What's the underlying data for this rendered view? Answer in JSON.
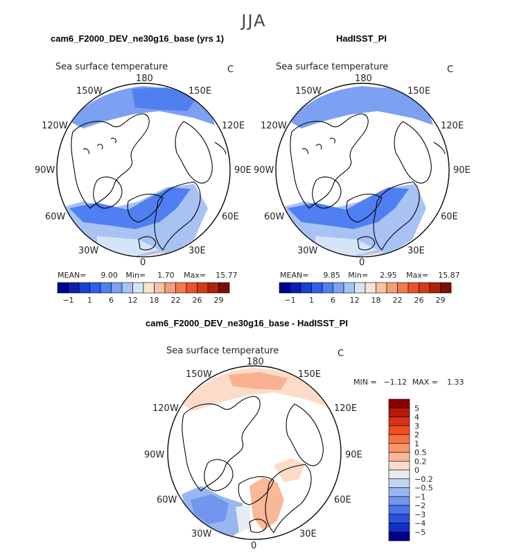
{
  "season": "JJA",
  "variable": "Sea surface temperature",
  "unit": "C",
  "lon_labels": [
    "180",
    "150E",
    "120E",
    "90E",
    "60E",
    "30E",
    "0",
    "30W",
    "60W",
    "90W",
    "120W",
    "150W"
  ],
  "panel1": {
    "title": "cam6_F2000_DEV_ne30g16_base (yrs 1)",
    "mean_label": "MEAN=",
    "mean": "9.00",
    "min_label": "Min=",
    "min": "1.70",
    "max_label": "Max=",
    "max": "15.77"
  },
  "panel2": {
    "title": "HadISST_PI",
    "mean_label": "MEAN=",
    "mean": "9.85",
    "min_label": "Min=",
    "min": "2.95",
    "max_label": "Max=",
    "max": "15.87"
  },
  "panel3": {
    "title": "cam6_F2000_DEV_ne30g16_base - HadISST_PI",
    "min_label": "MIN =",
    "min": "−1.12",
    "max_label": "MAX =",
    "max": "1.33"
  },
  "colorbar_main": {
    "tick_labels": [
      "−1",
      "1",
      "6",
      "12",
      "18",
      "22",
      "26",
      "29"
    ],
    "colors": [
      "#00008b",
      "#0a1fb4",
      "#1b3fd6",
      "#2f5fe8",
      "#4f7ff0",
      "#7ca0f2",
      "#a8c2f4",
      "#d6e4f8",
      "#fbe3d2",
      "#f8c2a6",
      "#f59e78",
      "#f27a4c",
      "#ec5426",
      "#d63a14",
      "#b0220c",
      "#7a0f04"
    ]
  },
  "colorbar_diff": {
    "labels": [
      "5",
      "4",
      "3",
      "2",
      "1",
      "0.5",
      "0.2",
      "0",
      "−0.2",
      "−0.5",
      "−1",
      "−2",
      "−3",
      "−4",
      "−5"
    ],
    "colors": [
      "#8b0000",
      "#b3190a",
      "#d93016",
      "#f24d20",
      "#f7723e",
      "#f9956a",
      "#fbb896",
      "#fcdcc8",
      "#e8ecf2",
      "#c2d4f4",
      "#9ab6f2",
      "#7296ee",
      "#4a74e8",
      "#2a52dc",
      "#1430c4",
      "#00008b"
    ]
  },
  "map_fields": {
    "panel1_regions": [
      {
        "lat": 65,
        "lon": -25,
        "value": 7
      },
      {
        "lat": 60,
        "lon": -50,
        "value": 8
      },
      {
        "lat": 70,
        "lon": -10,
        "value": 6
      },
      {
        "lat": 72,
        "lon": 20,
        "value": 5
      },
      {
        "lat": 56,
        "lon": -30,
        "value": 10
      },
      {
        "lat": 52,
        "lon": -20,
        "value": 12
      },
      {
        "lat": 60,
        "lon": -175,
        "value": 6
      },
      {
        "lat": 62,
        "lon": 170,
        "value": 5
      },
      {
        "lat": 55,
        "lon": 160,
        "value": 8
      }
    ],
    "panel2_regions": [
      {
        "lat": 65,
        "lon": -25,
        "value": 8
      },
      {
        "lat": 60,
        "lon": -50,
        "value": 8
      },
      {
        "lat": 70,
        "lon": -10,
        "value": 7
      },
      {
        "lat": 72,
        "lon": 20,
        "value": 6
      },
      {
        "lat": 56,
        "lon": -30,
        "value": 10
      },
      {
        "lat": 52,
        "lon": -20,
        "value": 13
      },
      {
        "lat": 60,
        "lon": -175,
        "value": 7
      },
      {
        "lat": 62,
        "lon": 170,
        "value": 6
      },
      {
        "lat": 55,
        "lon": 160,
        "value": 8
      }
    ],
    "panel3_regions": [
      {
        "lat": 62,
        "lon": -50,
        "value": -1
      },
      {
        "lat": 58,
        "lon": -35,
        "value": -0.5
      },
      {
        "lat": 70,
        "lon": -10,
        "value": 0.5
      },
      {
        "lat": 68,
        "lon": 10,
        "value": 0.5
      },
      {
        "lat": 60,
        "lon": -170,
        "value": 0.5
      },
      {
        "lat": 60,
        "lon": 170,
        "value": 0.2
      },
      {
        "lat": 55,
        "lon": 160,
        "value": 0.5
      }
    ]
  }
}
